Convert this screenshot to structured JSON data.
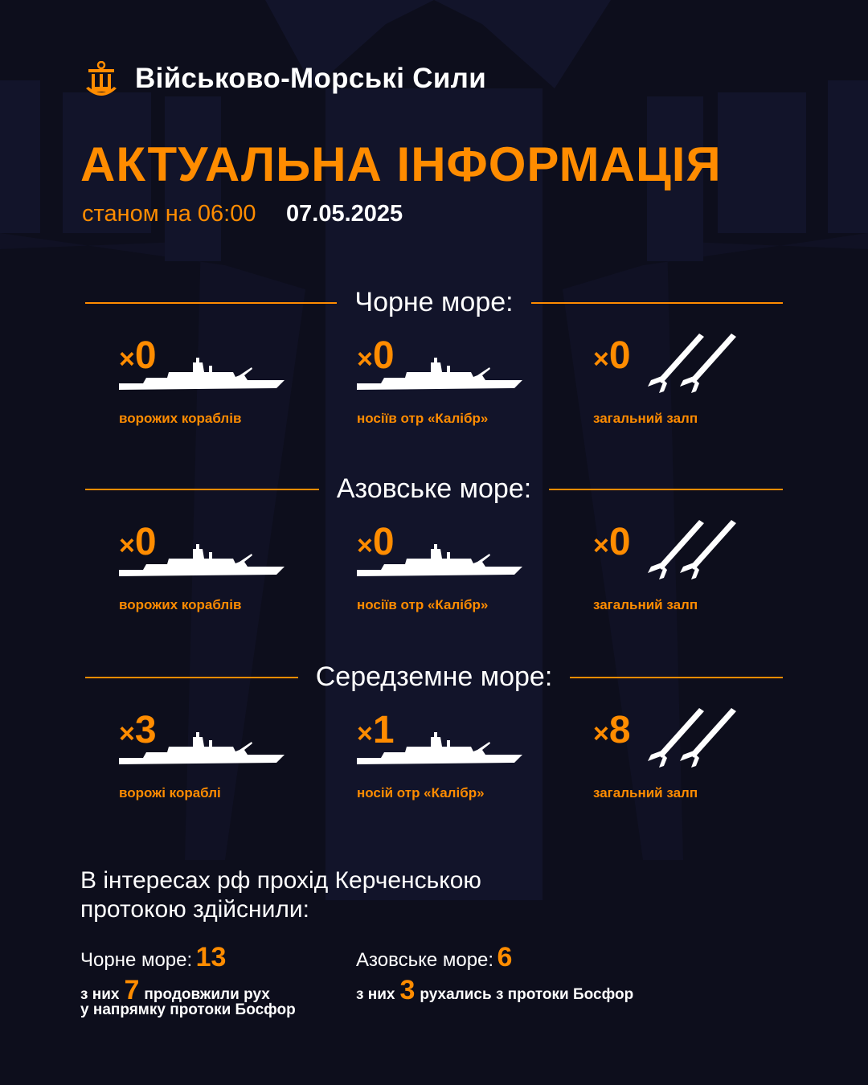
{
  "header": {
    "brand": "Військово-Морські Сили",
    "title": "АКТУАЛЬНА ІНФОРМАЦІЯ",
    "as_of_label": "станом на 06:00",
    "date": "07.05.2025"
  },
  "colors": {
    "accent": "#ff8c00",
    "background": "#0d0e1c",
    "text": "#ffffff"
  },
  "sections": [
    {
      "name": "Чорне море:",
      "ships": {
        "count": "0",
        "label": "ворожих кораблів"
      },
      "carriers": {
        "count": "0",
        "label": "носіїв отр «Калібр»"
      },
      "salvo": {
        "count": "0",
        "label": "загальний залп"
      }
    },
    {
      "name": "Азовське море:",
      "ships": {
        "count": "0",
        "label": "ворожих кораблів"
      },
      "carriers": {
        "count": "0",
        "label": "носіїв отр «Калібр»"
      },
      "salvo": {
        "count": "0",
        "label": "загальний залп"
      }
    },
    {
      "name": "Середземне море:",
      "ships": {
        "count": "3",
        "label": "ворожі кораблі"
      },
      "carriers": {
        "count": "1",
        "label": "носій отр «Калібр»"
      },
      "salvo": {
        "count": "8",
        "label": "загальний залп"
      }
    }
  ],
  "multiplier": "×",
  "kerch": {
    "intro": "В інтересах рф прохід Керченською протокою здійснили:",
    "black_sea": {
      "label": "Чорне море:",
      "total": "13",
      "of_them": "з них",
      "count": "7",
      "text1": "продовжили рух",
      "text2": "у напрямку протоки Босфор"
    },
    "azov_sea": {
      "label": "Азовське море:",
      "total": "6",
      "of_them": "з них",
      "count": "3",
      "text1": "рухались з протоки Босфор"
    }
  },
  "icons": {
    "logo": "trident-anchor-icon",
    "ship": "warship-icon",
    "missile": "missile-icon"
  }
}
